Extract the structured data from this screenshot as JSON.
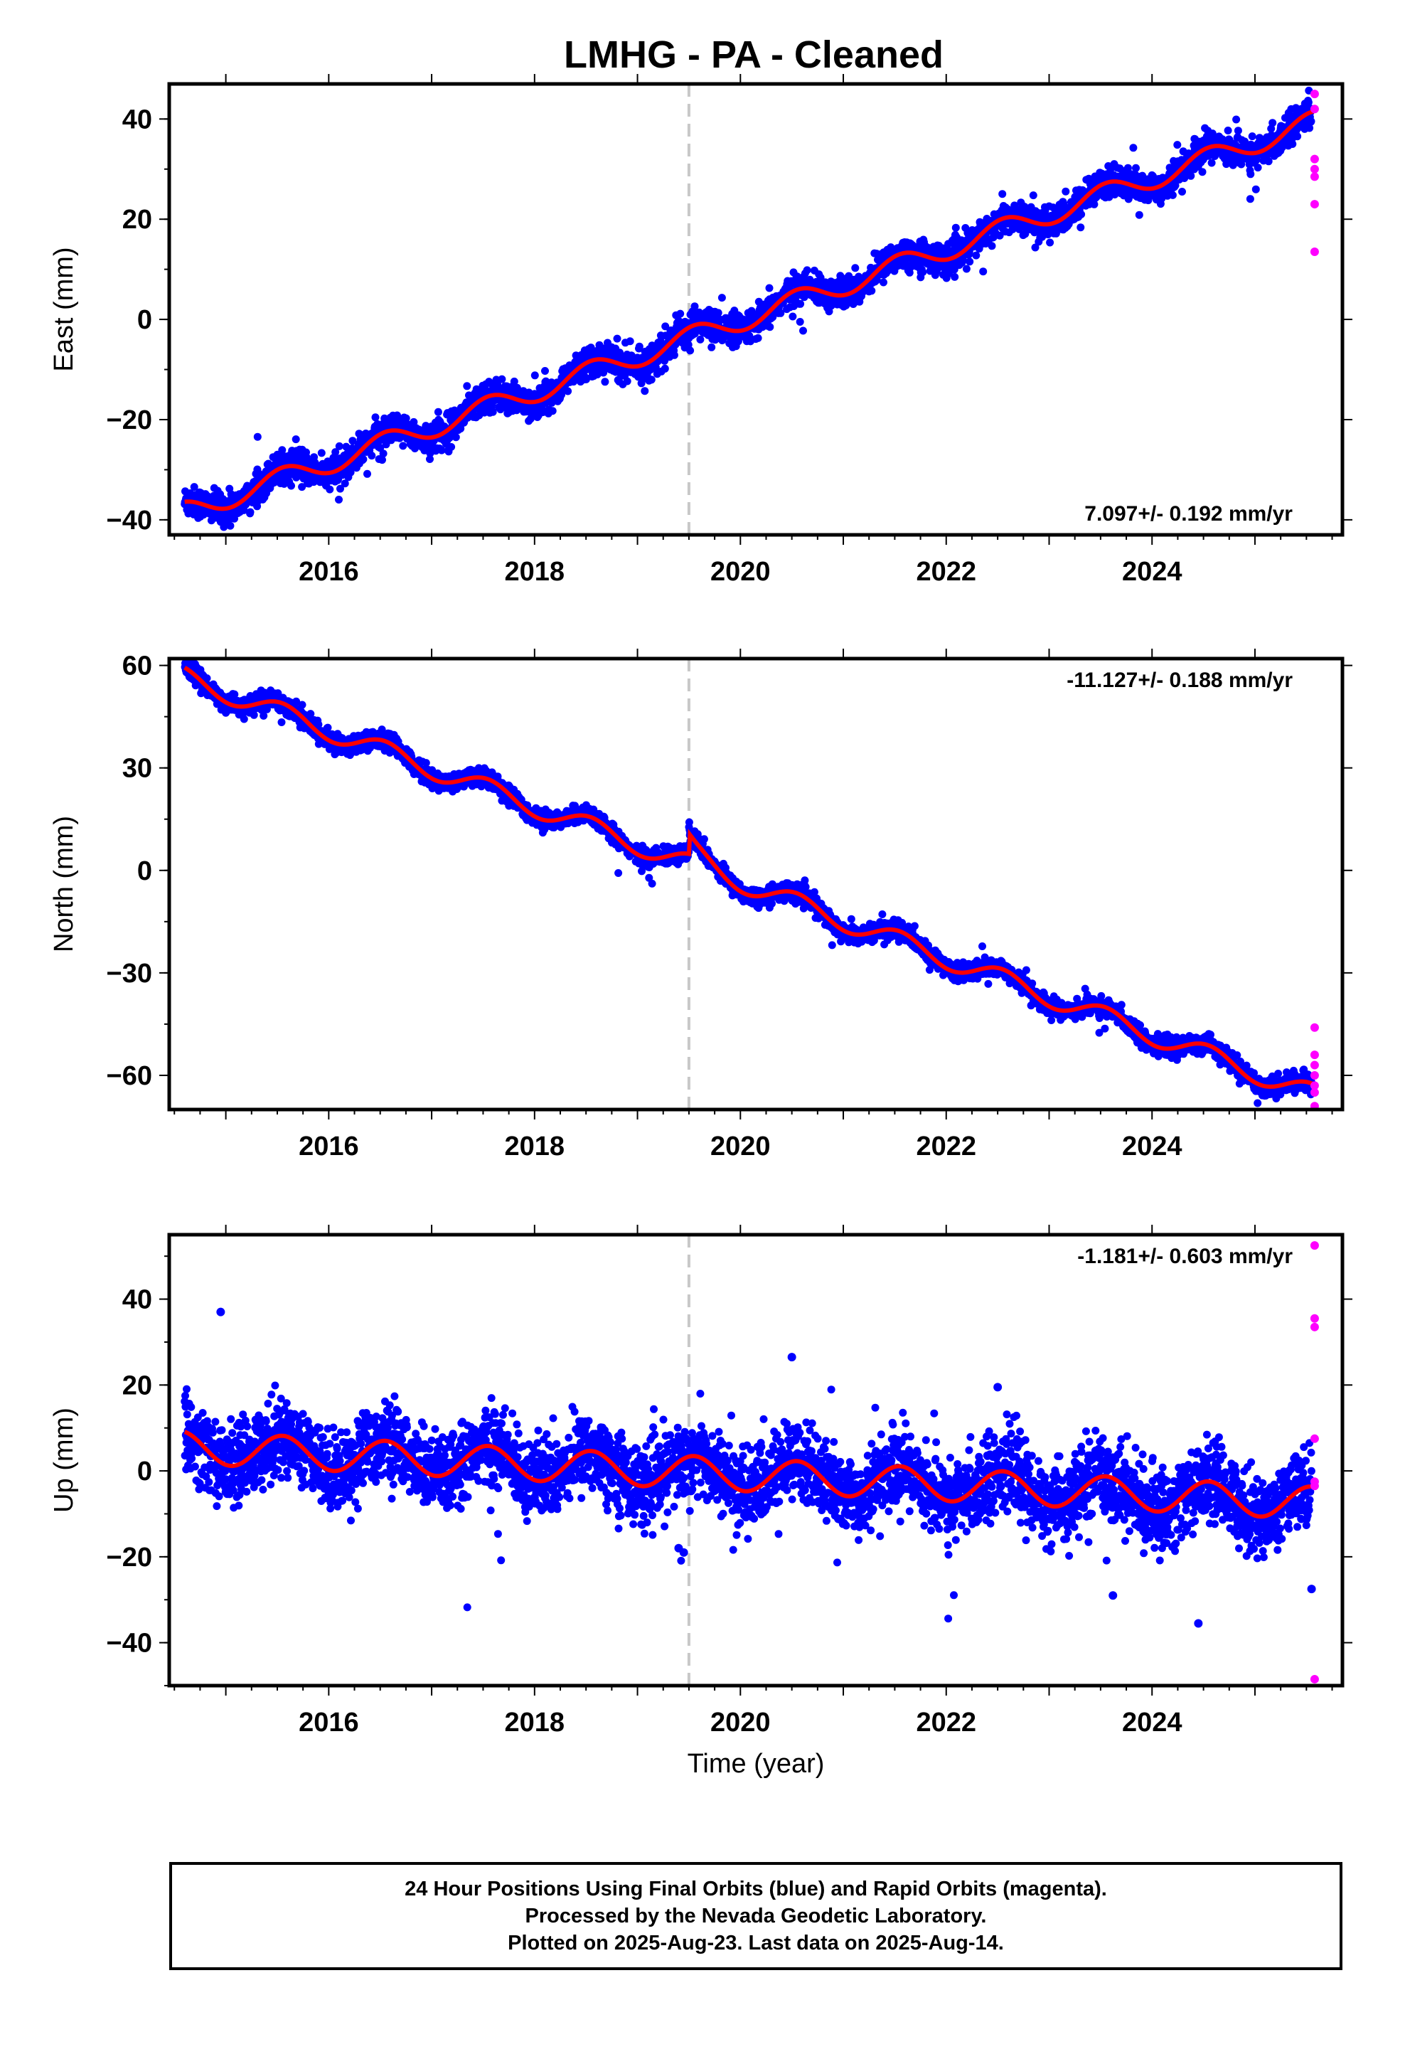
{
  "title": "LMHG  - PA - Cleaned",
  "colors": {
    "final_orbits": "#0000ff",
    "rapid_orbits": "#ff00ff",
    "model_fit": "#ff0000",
    "event_line": "#c8c8c8"
  },
  "event_line_year": 2019.5,
  "chart_data": [
    {
      "type": "scatter",
      "ylabel": "East (mm)",
      "xlim": [
        2014.45,
        2025.85
      ],
      "ylim": [
        -43,
        47
      ],
      "x_ticks": [
        2016,
        2018,
        2020,
        2022,
        2024
      ],
      "x_tick_labels": [
        "2016",
        "2018",
        "2020",
        "2022",
        "2024"
      ],
      "y_ticks": [
        -40,
        -20,
        0,
        20,
        40
      ],
      "y_tick_labels": [
        "−40",
        "−20",
        "0",
        "20",
        "40"
      ],
      "rate_label": "7.097+/- 0.192 mm/yr",
      "rate_position": "bottom-right",
      "trend": {
        "start_year": 2014.6,
        "start_value": -38.5,
        "rate": 7.097,
        "seasonal_amplitude": 2.2,
        "step_2019_5": 0
      },
      "noise": 1.5,
      "rapid_points": [
        {
          "x": 2025.58,
          "y": 45
        },
        {
          "x": 2025.58,
          "y": 42
        },
        {
          "x": 2025.58,
          "y": 32
        },
        {
          "x": 2025.58,
          "y": 30
        },
        {
          "x": 2025.58,
          "y": 28.5
        },
        {
          "x": 2025.58,
          "y": 23
        },
        {
          "x": 2025.58,
          "y": 13.5
        }
      ]
    },
    {
      "type": "scatter",
      "ylabel": "North (mm)",
      "xlim": [
        2014.45,
        2025.85
      ],
      "ylim": [
        -70,
        62
      ],
      "x_ticks": [
        2016,
        2018,
        2020,
        2022,
        2024
      ],
      "x_tick_labels": [
        "2016",
        "2018",
        "2020",
        "2022",
        "2024"
      ],
      "y_ticks": [
        -60,
        -30,
        0,
        30,
        60
      ],
      "y_tick_labels": [
        "−60",
        "−30",
        "0",
        "30",
        "60"
      ],
      "rate_label": "-11.127+/- 0.188 mm/yr",
      "rate_position": "top-right",
      "trend": {
        "start_year": 2014.6,
        "start_value": 56.5,
        "rate": -11.127,
        "seasonal_amplitude": 3.0,
        "step_2019_5": 6
      },
      "noise": 1.3,
      "rapid_points": [
        {
          "x": 2025.58,
          "y": -46
        },
        {
          "x": 2025.58,
          "y": -54
        },
        {
          "x": 2025.58,
          "y": -57
        },
        {
          "x": 2025.58,
          "y": -60
        },
        {
          "x": 2025.58,
          "y": -63
        },
        {
          "x": 2025.58,
          "y": -65
        },
        {
          "x": 2025.58,
          "y": -69
        }
      ]
    },
    {
      "type": "scatter",
      "ylabel": "Up (mm)",
      "xlim": [
        2014.45,
        2025.85
      ],
      "ylim": [
        -50,
        55
      ],
      "x_ticks": [
        2016,
        2018,
        2020,
        2022,
        2024
      ],
      "x_tick_labels": [
        "2016",
        "2018",
        "2020",
        "2022",
        "2024"
      ],
      "y_ticks": [
        -40,
        -20,
        0,
        20,
        40
      ],
      "y_tick_labels": [
        "−40",
        "−20",
        "0",
        "20",
        "40"
      ],
      "xlabel": "Time (year)",
      "rate_label": "-1.181+/- 0.603 mm/yr",
      "rate_position": "top-right",
      "trend": {
        "start_year": 2014.6,
        "start_value": 5.5,
        "rate": -1.181,
        "seasonal_amplitude": 3.8,
        "step_2019_5": 0
      },
      "noise": 4.5,
      "outliers": [
        {
          "x": 2014.95,
          "y": 37
        },
        {
          "x": 2020.5,
          "y": 26.5
        },
        {
          "x": 2022.5,
          "y": 19.5
        },
        {
          "x": 2023.62,
          "y": -29
        },
        {
          "x": 2024.45,
          "y": -35.5
        },
        {
          "x": 2025.55,
          "y": -27.5
        },
        {
          "x": 2019.4,
          "y": -18
        },
        {
          "x": 2019.45,
          "y": -19
        }
      ],
      "rapid_points": [
        {
          "x": 2025.58,
          "y": 52.5
        },
        {
          "x": 2025.58,
          "y": 35.5
        },
        {
          "x": 2025.58,
          "y": 33.5
        },
        {
          "x": 2025.58,
          "y": 7.5
        },
        {
          "x": 2025.58,
          "y": -2.5
        },
        {
          "x": 2025.58,
          "y": -3.5
        },
        {
          "x": 2025.58,
          "y": -48.5
        }
      ]
    }
  ],
  "footer": {
    "line1": "24 Hour Positions Using Final Orbits (blue) and Rapid Orbits (magenta).",
    "line2": "Processed by the Nevada Geodetic Laboratory.",
    "line3": "Plotted on 2025-Aug-23. Last data on 2025-Aug-14."
  }
}
